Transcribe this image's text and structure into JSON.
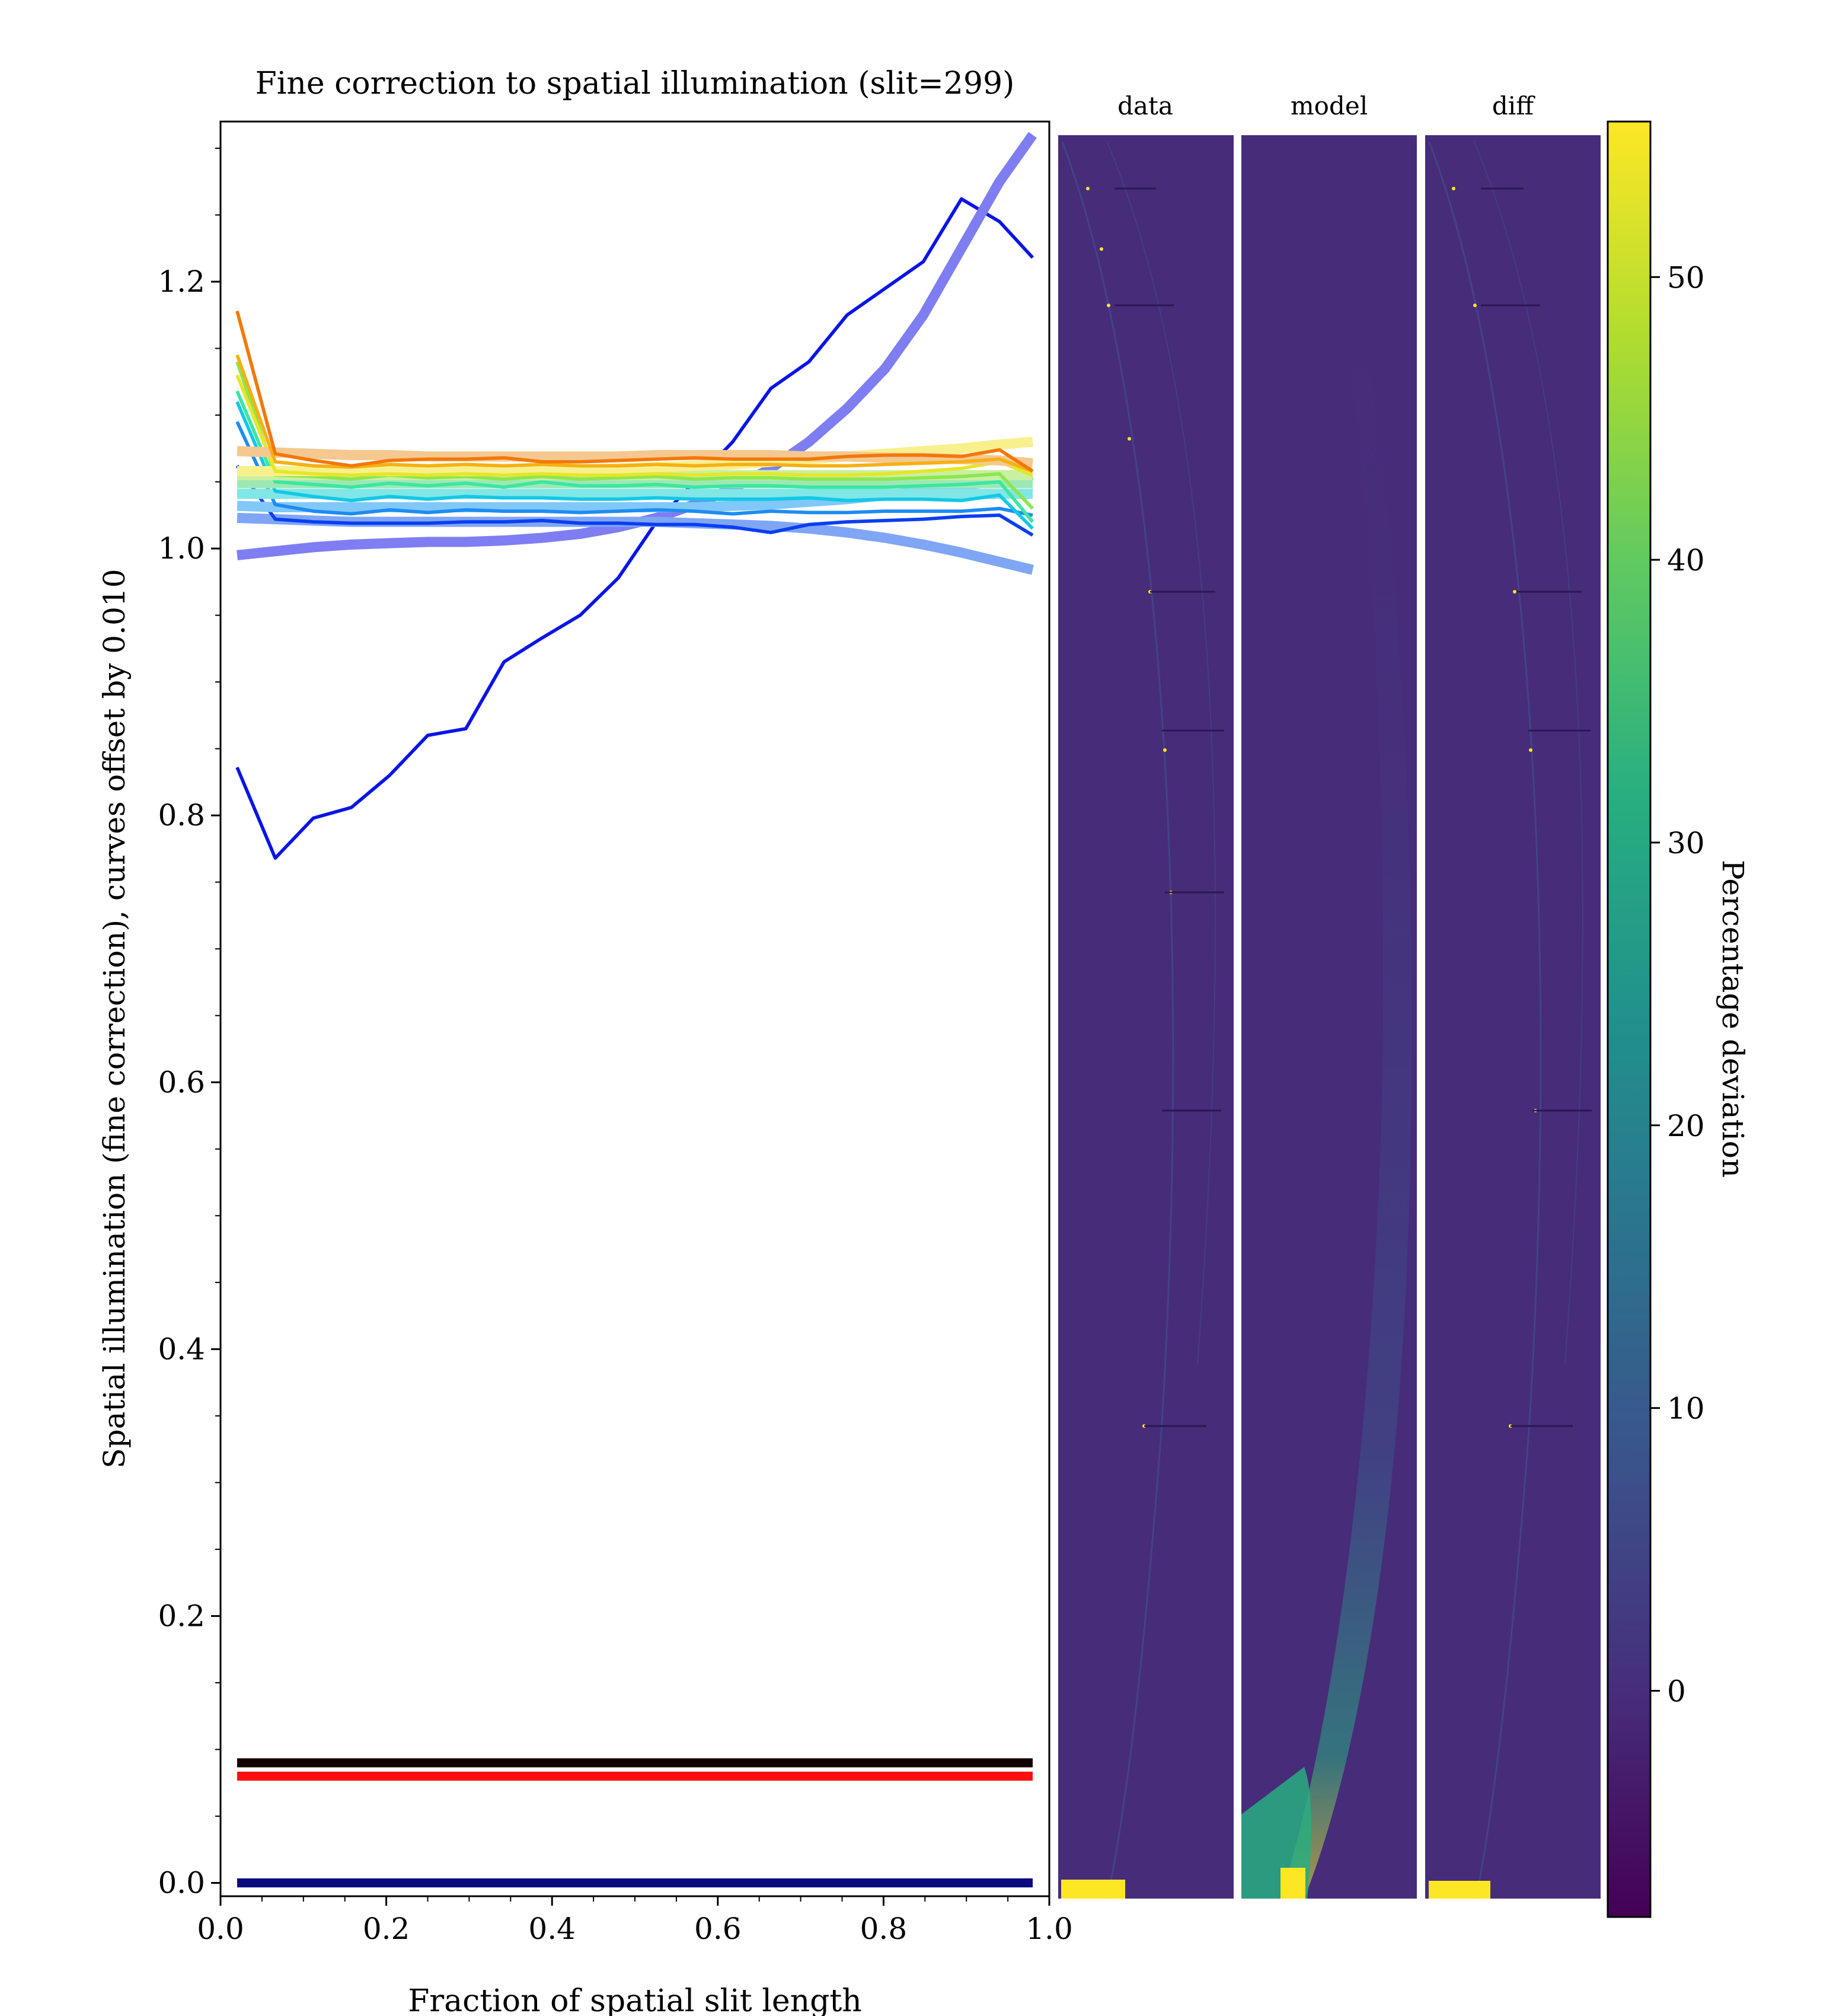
{
  "chart_data": [
    {
      "type": "line",
      "title": "Fine correction to spatial illumination (slit=299)",
      "xlabel": "Fraction of spatial slit length",
      "ylabel": "Spatial illumination (fine correction), curves offset by 0.010",
      "xlim": [
        0.0,
        1.0
      ],
      "ylim": [
        -0.01,
        1.32
      ],
      "xticks": [
        "0.0",
        "0.2",
        "0.4",
        "0.6",
        "0.8",
        "1.0"
      ],
      "yticks": [
        "0.0",
        "0.2",
        "0.4",
        "0.6",
        "0.8",
        "1.0",
        "1.2"
      ],
      "grid": false,
      "x": [
        0.02,
        0.066,
        0.112,
        0.158,
        0.204,
        0.25,
        0.296,
        0.342,
        0.388,
        0.434,
        0.48,
        0.526,
        0.572,
        0.618,
        0.664,
        0.71,
        0.756,
        0.802,
        0.848,
        0.894,
        0.94,
        0.98
      ],
      "series": [
        {
          "color": "#0a14e6",
          "width": 3,
          "opacity": 1,
          "values": [
            0.836,
            0.768,
            0.798,
            0.806,
            0.83,
            0.86,
            0.865,
            0.915,
            0.933,
            0.95,
            0.978,
            1.02,
            1.05,
            1.08,
            1.12,
            1.14,
            1.175,
            1.195,
            1.215,
            1.262,
            1.245,
            1.218
          ]
        },
        {
          "color": "#7e7ef2",
          "width": 9,
          "opacity": 1,
          "values": [
            0.995,
            0.998,
            1.001,
            1.003,
            1.004,
            1.005,
            1.005,
            1.006,
            1.008,
            1.011,
            1.016,
            1.023,
            1.033,
            1.045,
            1.06,
            1.08,
            1.105,
            1.135,
            1.175,
            1.225,
            1.275,
            1.31
          ]
        },
        {
          "color": "#7fa6f5",
          "width": 9,
          "opacity": 1,
          "values": [
            1.023,
            1.022,
            1.021,
            1.02,
            1.02,
            1.02,
            1.02,
            1.02,
            1.02,
            1.02,
            1.02,
            1.02,
            1.019,
            1.018,
            1.017,
            1.015,
            1.012,
            1.008,
            1.003,
            0.997,
            0.99,
            0.984
          ]
        },
        {
          "color": "#0a3ef2",
          "width": 3,
          "opacity": 1,
          "values": [
            1.062,
            1.022,
            1.02,
            1.019,
            1.019,
            1.019,
            1.02,
            1.02,
            1.021,
            1.019,
            1.019,
            1.018,
            1.018,
            1.016,
            1.012,
            1.018,
            1.02,
            1.021,
            1.022,
            1.024,
            1.025,
            1.01
          ]
        },
        {
          "color": "#80c8f8",
          "width": 9,
          "opacity": 1,
          "values": [
            1.032,
            1.031,
            1.031,
            1.031,
            1.031,
            1.031,
            1.031,
            1.031,
            1.031,
            1.031,
            1.031,
            1.031,
            1.031,
            1.032,
            1.033,
            1.035,
            1.037,
            1.04,
            1.043,
            1.047,
            1.051,
            1.055
          ]
        },
        {
          "color": "#1d8cf2",
          "width": 3,
          "opacity": 1,
          "values": [
            1.095,
            1.033,
            1.028,
            1.026,
            1.029,
            1.027,
            1.029,
            1.028,
            1.028,
            1.027,
            1.028,
            1.029,
            1.028,
            1.026,
            1.028,
            1.027,
            1.027,
            1.028,
            1.028,
            1.028,
            1.03,
            1.025
          ]
        },
        {
          "color": "#80e6e6",
          "width": 9,
          "opacity": 1,
          "values": [
            1.041,
            1.041,
            1.041,
            1.041,
            1.041,
            1.041,
            1.041,
            1.041,
            1.041,
            1.041,
            1.041,
            1.041,
            1.041,
            1.041,
            1.041,
            1.041,
            1.041,
            1.041,
            1.041,
            1.041,
            1.041,
            1.041
          ]
        },
        {
          "color": "#12c8e6",
          "width": 3,
          "opacity": 1,
          "values": [
            1.11,
            1.043,
            1.039,
            1.036,
            1.039,
            1.037,
            1.039,
            1.038,
            1.038,
            1.037,
            1.037,
            1.038,
            1.037,
            1.037,
            1.037,
            1.038,
            1.036,
            1.037,
            1.037,
            1.036,
            1.04,
            1.015
          ]
        },
        {
          "color": "#9ce8b4",
          "width": 9,
          "opacity": 1,
          "values": [
            1.049,
            1.049,
            1.049,
            1.049,
            1.049,
            1.049,
            1.049,
            1.049,
            1.049,
            1.049,
            1.049,
            1.049,
            1.049,
            1.049,
            1.049,
            1.049,
            1.049,
            1.049,
            1.049,
            1.049,
            1.049,
            1.049
          ]
        },
        {
          "color": "#3ce6a0",
          "width": 3,
          "opacity": 1,
          "values": [
            1.118,
            1.05,
            1.048,
            1.046,
            1.049,
            1.047,
            1.049,
            1.046,
            1.05,
            1.047,
            1.047,
            1.048,
            1.046,
            1.047,
            1.047,
            1.046,
            1.046,
            1.046,
            1.047,
            1.048,
            1.05,
            1.02
          ]
        },
        {
          "color": "#c8f0a0",
          "width": 9,
          "opacity": 1,
          "values": [
            1.055,
            1.055,
            1.055,
            1.055,
            1.055,
            1.055,
            1.055,
            1.055,
            1.055,
            1.055,
            1.055,
            1.055,
            1.055,
            1.055,
            1.055,
            1.055,
            1.055,
            1.055,
            1.055,
            1.055,
            1.055,
            1.055
          ]
        },
        {
          "color": "#8ce650",
          "width": 3,
          "opacity": 1,
          "values": [
            1.14,
            1.055,
            1.054,
            1.052,
            1.055,
            1.053,
            1.054,
            1.052,
            1.054,
            1.052,
            1.053,
            1.054,
            1.052,
            1.053,
            1.053,
            1.052,
            1.052,
            1.052,
            1.053,
            1.054,
            1.056,
            1.03
          ]
        },
        {
          "color": "#f8f08c",
          "width": 9,
          "opacity": 1,
          "values": [
            1.058,
            1.058,
            1.058,
            1.058,
            1.058,
            1.058,
            1.058,
            1.058,
            1.059,
            1.059,
            1.06,
            1.061,
            1.062,
            1.063,
            1.065,
            1.067,
            1.069,
            1.071,
            1.073,
            1.075,
            1.078,
            1.08
          ]
        },
        {
          "color": "#e6e628",
          "width": 3,
          "opacity": 1,
          "values": [
            1.13,
            1.058,
            1.056,
            1.055,
            1.056,
            1.055,
            1.056,
            1.055,
            1.056,
            1.055,
            1.055,
            1.056,
            1.055,
            1.056,
            1.056,
            1.055,
            1.055,
            1.056,
            1.058,
            1.06,
            1.065,
            1.055
          ]
        },
        {
          "color": "#f5c890",
          "width": 9,
          "opacity": 1,
          "values": [
            1.073,
            1.072,
            1.071,
            1.07,
            1.07,
            1.069,
            1.069,
            1.069,
            1.069,
            1.069,
            1.069,
            1.07,
            1.07,
            1.07,
            1.07,
            1.069,
            1.069,
            1.068,
            1.068,
            1.067,
            1.066,
            1.064
          ]
        },
        {
          "color": "#f5b014",
          "width": 3,
          "opacity": 1,
          "values": [
            1.145,
            1.065,
            1.062,
            1.061,
            1.063,
            1.062,
            1.063,
            1.062,
            1.063,
            1.062,
            1.062,
            1.063,
            1.062,
            1.063,
            1.063,
            1.062,
            1.062,
            1.063,
            1.064,
            1.065,
            1.067,
            1.058
          ]
        },
        {
          "color": "#f2780a",
          "width": 3,
          "opacity": 1,
          "values": [
            1.178,
            1.071,
            1.066,
            1.062,
            1.066,
            1.067,
            1.067,
            1.068,
            1.065,
            1.065,
            1.066,
            1.067,
            1.068,
            1.067,
            1.067,
            1.067,
            1.069,
            1.07,
            1.07,
            1.069,
            1.074,
            1.058
          ]
        },
        {
          "color": "#140000",
          "width": 8,
          "opacity": 1,
          "values": [
            0.09,
            0.09,
            0.09,
            0.09,
            0.09,
            0.09,
            0.09,
            0.09,
            0.09,
            0.09,
            0.09,
            0.09,
            0.09,
            0.09,
            0.09,
            0.09,
            0.09,
            0.09,
            0.09,
            0.09,
            0.09,
            0.09
          ]
        },
        {
          "color": "#ff1010",
          "width": 8,
          "opacity": 1,
          "values": [
            0.08,
            0.08,
            0.08,
            0.08,
            0.08,
            0.08,
            0.08,
            0.08,
            0.08,
            0.08,
            0.08,
            0.08,
            0.08,
            0.08,
            0.08,
            0.08,
            0.08,
            0.08,
            0.08,
            0.08,
            0.08,
            0.08
          ]
        },
        {
          "color": "#0a0a80",
          "width": 8,
          "opacity": 1,
          "values": [
            0.0,
            0.0,
            0.0,
            0.0,
            0.0,
            0.0,
            0.0,
            0.0,
            0.0,
            0.0,
            0.0,
            0.0,
            0.0,
            0.0,
            0.0,
            0.0,
            0.0,
            0.0,
            0.0,
            0.0,
            0.0,
            0.0
          ]
        }
      ]
    },
    {
      "type": "heatmap",
      "panels": [
        "data",
        "model",
        "diff"
      ],
      "colormap": "viridis",
      "background_color": "#472c7a",
      "colorbar": {
        "label": "Percentage deviation",
        "ticks": [
          "0",
          "10",
          "20",
          "30",
          "40",
          "50"
        ],
        "range": [
          -8,
          55.5
        ]
      }
    }
  ]
}
